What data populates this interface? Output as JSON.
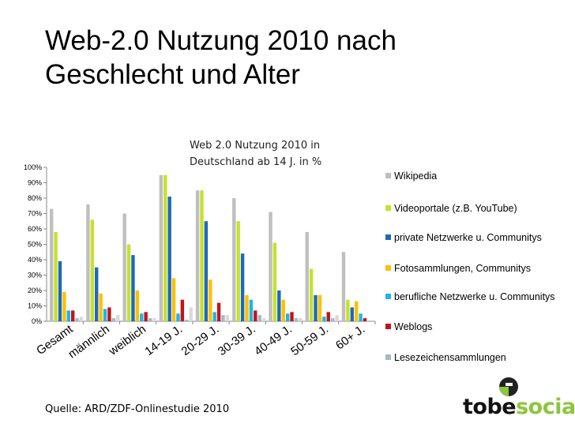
{
  "slide": {
    "title_line1": "Web-2.0 Nutzung 2010 nach",
    "title_line2": "Geschlecht und Alter",
    "source": "Quelle: ARD/ZDF-Onlinestudie 2010"
  },
  "logo": {
    "part1": "tobe",
    "part2": "social",
    "colors": {
      "dark": "#111111",
      "green": "#8dc63f"
    }
  },
  "chart_data": {
    "type": "bar",
    "title_line1": "Web 2.0 Nutzung 2010  in",
    "title_line2": "Deutschland ab 14 J. in %",
    "categories": [
      "Gesamt",
      "männlich",
      "weiblich",
      "14-19 J.",
      "20-29 J.",
      "30-39 J.",
      "40-49 J.",
      "50-59 J.",
      "60+ J."
    ],
    "y_ticks": [
      "0%",
      "10%",
      "20%",
      "30%",
      "40%",
      "50%",
      "60%",
      "70%",
      "80%",
      "90%",
      "100%"
    ],
    "ylim": [
      0,
      100
    ],
    "legend_position": "right",
    "series": [
      {
        "name": "Wikipedia",
        "color": "#bfbfbf",
        "values": [
          73,
          76,
          70,
          95,
          85,
          80,
          71,
          58,
          45
        ]
      },
      {
        "name": "Videoportale (z.B. YouTube)",
        "color": "#c6e12e",
        "values": [
          58,
          66,
          50,
          95,
          85,
          65,
          51,
          34,
          14
        ]
      },
      {
        "name": "private Netzwerke u. Communitys",
        "color": "#1f6ab5",
        "values": [
          39,
          35,
          43,
          81,
          65,
          44,
          20,
          17,
          9
        ]
      },
      {
        "name": "Fotosammlungen, Communitys",
        "color": "#ffc000",
        "values": [
          19,
          18,
          20,
          28,
          27,
          17,
          14,
          17,
          13
        ]
      },
      {
        "name": "berufliche Netzwerke u. Communitys",
        "color": "#1fb5e8",
        "values": [
          7,
          8,
          5,
          5,
          6,
          14,
          5,
          3,
          5
        ]
      },
      {
        "name": "Weblogs",
        "color": "#c0151a",
        "values": [
          7,
          9,
          6,
          14,
          12,
          7,
          6,
          6,
          2
        ]
      },
      {
        "name": "Lesezeichensammlungen",
        "color": "#a6b7c9",
        "values": [
          2,
          2,
          2,
          1,
          4,
          4,
          2,
          2,
          0
        ]
      }
    ],
    "extra_series": [
      {
        "name": "",
        "color": "#d9d9d9",
        "values": [
          3,
          4,
          2,
          9,
          4,
          2,
          2,
          4,
          0
        ]
      }
    ]
  }
}
